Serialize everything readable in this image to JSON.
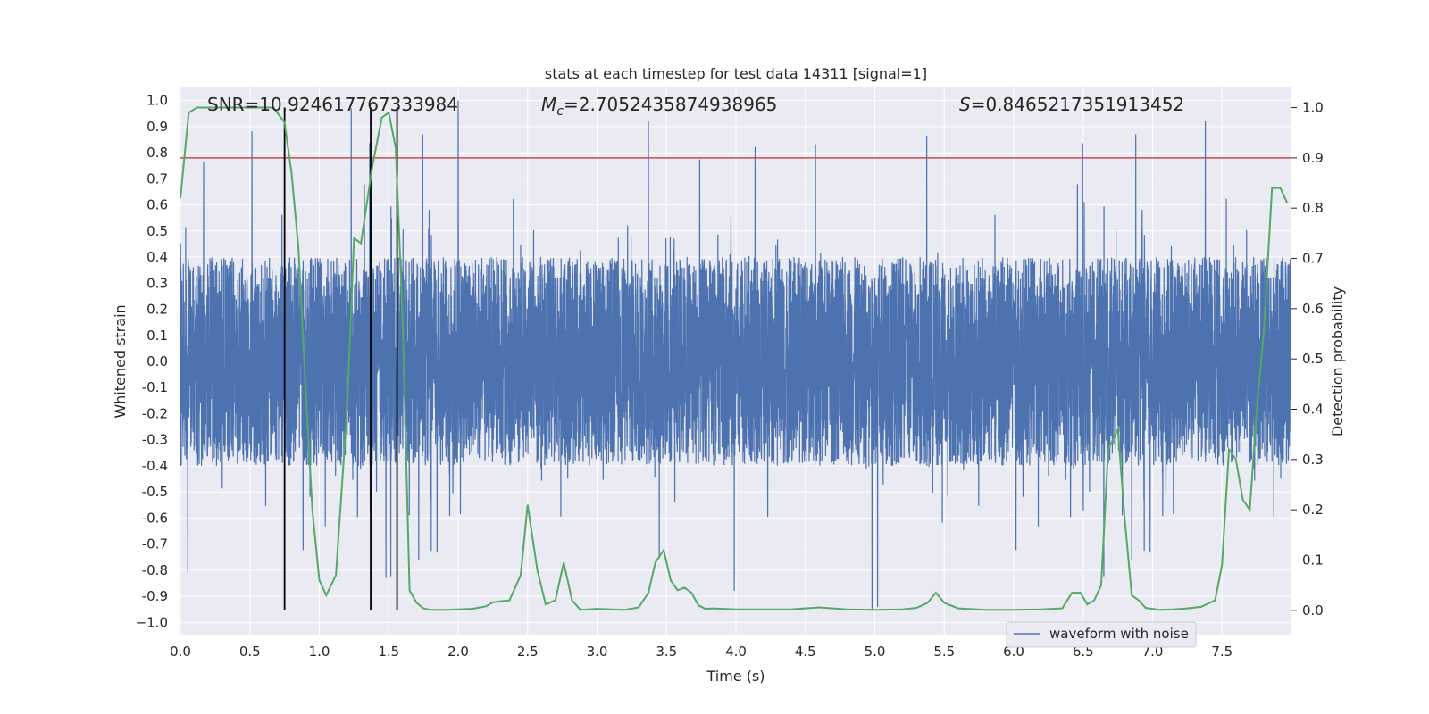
{
  "chart_data": {
    "type": "line",
    "title": "stats at each timestep for test data 14311 [signal=1]",
    "xlabel": "Time (s)",
    "ylabel_left": "Whitened strain",
    "ylabel_right": "Detection probability",
    "xlim": [
      0,
      8
    ],
    "ylim_left": [
      -1.05,
      1.05
    ],
    "ylim_right": [
      -0.05,
      1.04
    ],
    "x_ticks": [
      "0.0",
      "0.5",
      "1.0",
      "1.5",
      "2.0",
      "2.5",
      "3.0",
      "3.5",
      "4.0",
      "4.5",
      "5.0",
      "5.5",
      "6.0",
      "6.5",
      "7.0",
      "7.5"
    ],
    "y_left_ticks": [
      "1.0",
      "0.9",
      "0.8",
      "0.7",
      "0.6",
      "0.5",
      "0.4",
      "0.3",
      "0.2",
      "0.1",
      "0.0",
      "-0.1",
      "-0.2",
      "-0.3",
      "-0.4",
      "-0.5",
      "-0.6",
      "-0.7",
      "-0.8",
      "-0.9",
      "−1.0"
    ],
    "y_right_ticks": [
      "1.0",
      "0.9",
      "0.8",
      "0.7",
      "0.6",
      "0.5",
      "0.4",
      "0.3",
      "0.2",
      "0.1",
      "0.0"
    ],
    "annotations": {
      "snr": "SNR=10.924617767333984",
      "mc": "=2.7052435874938965",
      "s": "=0.8465217351913452"
    },
    "legend": {
      "label": "waveform with noise",
      "placement": "lower-right"
    },
    "grid": true,
    "threshold": 0.9,
    "event_lines_x": [
      0.75,
      1.37,
      1.56
    ],
    "colors": {
      "waveform": "#4c72b0",
      "probability": "#55a868",
      "threshold": "#c44e52",
      "events": "#000000",
      "axes_bg": "#eaeaf2"
    },
    "series": [
      {
        "name": "waveform with noise",
        "envelope_core": 0.4,
        "noted_extremes": [
          [
            1.23,
            0.97
          ],
          [
            2.0,
            1.0
          ],
          [
            3.37,
            0.92
          ],
          [
            7.38,
            0.92
          ],
          [
            4.98,
            -0.95
          ],
          [
            5.02,
            -0.94
          ],
          [
            1.48,
            -0.83
          ],
          [
            1.52,
            0.55
          ]
        ]
      },
      {
        "probability": true,
        "x": [
          0.0,
          0.06,
          0.12,
          0.2,
          0.3,
          0.4,
          0.5,
          0.6,
          0.67,
          0.75,
          0.8,
          0.85,
          0.9,
          0.95,
          1.0,
          1.05,
          1.12,
          1.2,
          1.25,
          1.3,
          1.38,
          1.45,
          1.5,
          1.55,
          1.6,
          1.65,
          1.7,
          1.75,
          1.8,
          1.9,
          2.0,
          2.1,
          2.2,
          2.25,
          2.3,
          2.37,
          2.45,
          2.5,
          2.57,
          2.63,
          2.7,
          2.76,
          2.82,
          2.88,
          2.94,
          3.0,
          3.1,
          3.2,
          3.3,
          3.37,
          3.42,
          3.48,
          3.53,
          3.58,
          3.63,
          3.68,
          3.73,
          3.78,
          3.84,
          3.9,
          4.0,
          4.2,
          4.4,
          4.6,
          4.8,
          5.0,
          5.2,
          5.3,
          5.38,
          5.44,
          5.5,
          5.6,
          5.8,
          6.0,
          6.2,
          6.35,
          6.42,
          6.48,
          6.53,
          6.58,
          6.63,
          6.68,
          6.75,
          6.8,
          6.85,
          6.9,
          6.95,
          7.05,
          7.15,
          7.25,
          7.35,
          7.45,
          7.5,
          7.55,
          7.6,
          7.65,
          7.7,
          7.75,
          7.8,
          7.86,
          7.92,
          7.97
        ],
        "values": [
          0.82,
          0.99,
          1.0,
          1.0,
          1.0,
          1.0,
          1.0,
          1.0,
          1.0,
          0.97,
          0.87,
          0.72,
          0.45,
          0.2,
          0.06,
          0.03,
          0.07,
          0.4,
          0.74,
          0.73,
          0.88,
          0.98,
          0.99,
          0.92,
          0.58,
          0.04,
          0.015,
          0.004,
          0.001,
          0.001,
          0.002,
          0.003,
          0.008,
          0.016,
          0.018,
          0.02,
          0.07,
          0.21,
          0.08,
          0.012,
          0.02,
          0.095,
          0.02,
          0.001,
          0.002,
          0.003,
          0.002,
          0.001,
          0.006,
          0.035,
          0.095,
          0.12,
          0.06,
          0.04,
          0.045,
          0.035,
          0.01,
          0.003,
          0.004,
          0.003,
          0.002,
          0.002,
          0.002,
          0.006,
          0.002,
          0.001,
          0.002,
          0.005,
          0.015,
          0.035,
          0.015,
          0.004,
          0.001,
          0.001,
          0.002,
          0.004,
          0.035,
          0.035,
          0.012,
          0.02,
          0.05,
          0.32,
          0.36,
          0.18,
          0.03,
          0.02,
          0.005,
          0.001,
          0.002,
          0.004,
          0.007,
          0.02,
          0.09,
          0.32,
          0.3,
          0.22,
          0.2,
          0.4,
          0.55,
          0.84,
          0.84,
          0.81
        ]
      }
    ]
  }
}
